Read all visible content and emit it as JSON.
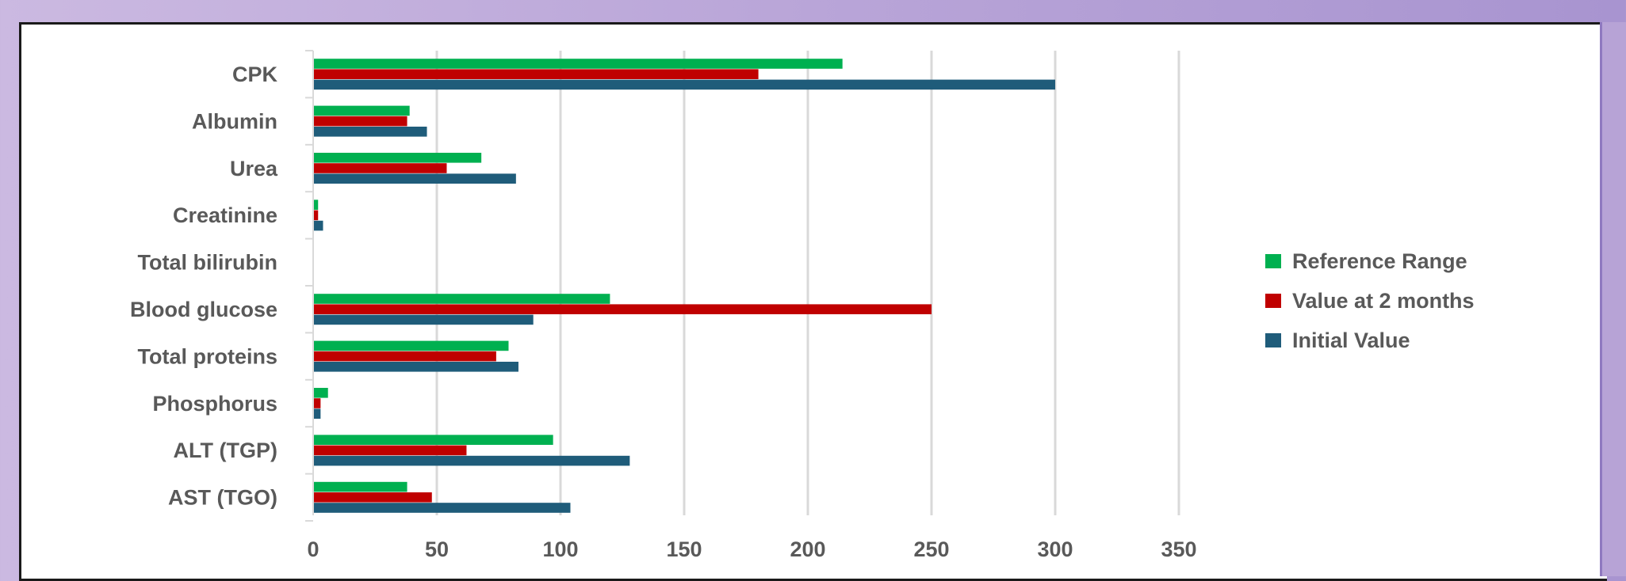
{
  "chart_data": {
    "type": "bar",
    "orientation": "horizontal",
    "categories": [
      "CPK",
      "Albumin",
      "Urea",
      "Creatinine",
      "Total bilirubin",
      "Blood glucose",
      "Total proteins",
      "Phosphorus",
      "ALT (TGP)",
      "AST (TGO)"
    ],
    "series": [
      {
        "name": "Reference Range",
        "color": "#00b050",
        "values": [
          214,
          39,
          68,
          2,
          0,
          120,
          79,
          6,
          97,
          38
        ]
      },
      {
        "name": "Value at 2 months",
        "color": "#c00000",
        "values": [
          180,
          38,
          54,
          2,
          0,
          250,
          74,
          3,
          62,
          48
        ]
      },
      {
        "name": "Initial Value",
        "color": "#1f5c7a",
        "values": [
          300,
          46,
          82,
          4,
          0,
          89,
          83,
          3,
          128,
          104
        ]
      }
    ],
    "xlim": [
      0,
      350
    ],
    "xticks": [
      0,
      50,
      100,
      150,
      200,
      250,
      300,
      350
    ],
    "grid": true,
    "legend_position": "right"
  }
}
